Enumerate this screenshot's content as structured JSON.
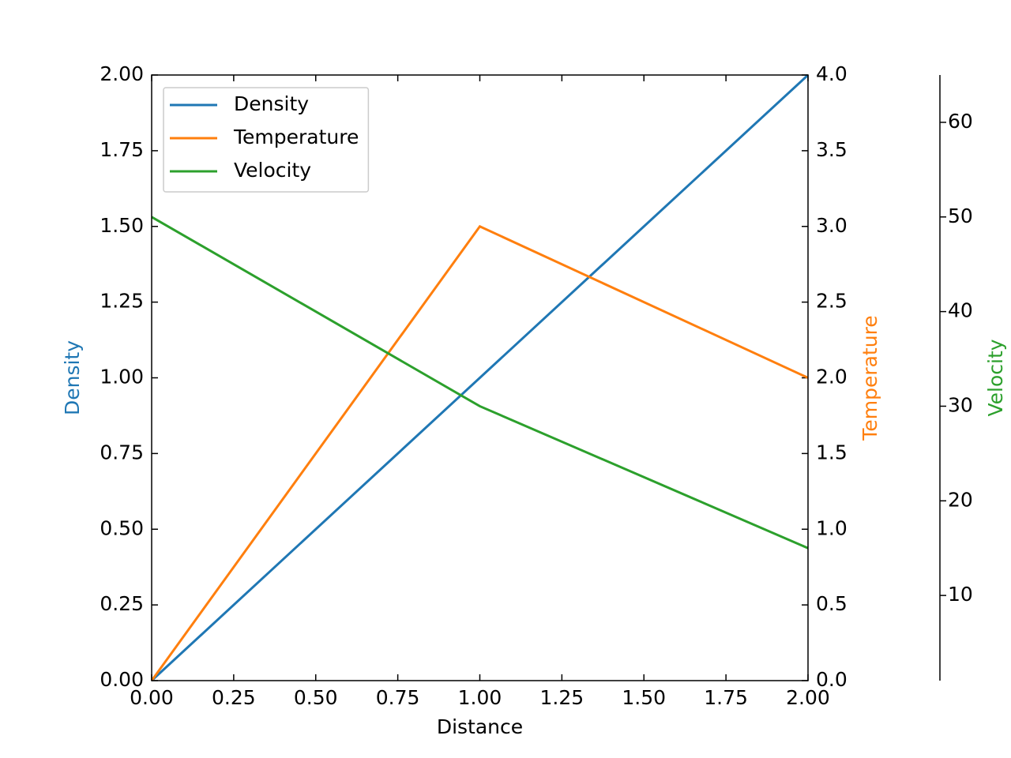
{
  "chart_data": {
    "type": "line",
    "x": [
      0,
      1,
      2
    ],
    "xlabel": "Distance",
    "ylabel": "Density",
    "y2label": "Temperature",
    "y3label": "Velocity",
    "series": [
      {
        "name": "Density",
        "color": "#1f77b4",
        "values": [
          0,
          1,
          2
        ],
        "axis": "y"
      },
      {
        "name": "Temperature",
        "color": "#ff7f0e",
        "values": [
          0,
          3,
          2
        ],
        "axis": "y2"
      },
      {
        "name": "Velocity",
        "color": "#2ca02c",
        "values": [
          50,
          30,
          15
        ],
        "axis": "y3"
      }
    ],
    "xlim": [
      0,
      2
    ],
    "xticks": [
      {
        "value": 0,
        "label": "0.00"
      },
      {
        "value": 0.25,
        "label": "0.25"
      },
      {
        "value": 0.5,
        "label": "0.50"
      },
      {
        "value": 0.75,
        "label": "0.75"
      },
      {
        "value": 1,
        "label": "1.00"
      },
      {
        "value": 1.25,
        "label": "1.25"
      },
      {
        "value": 1.5,
        "label": "1.50"
      },
      {
        "value": 1.75,
        "label": "1.75"
      },
      {
        "value": 2,
        "label": "2.00"
      }
    ],
    "ylim": [
      0,
      2
    ],
    "yticks": [
      {
        "value": 0,
        "label": "0.00"
      },
      {
        "value": 0.25,
        "label": "0.25"
      },
      {
        "value": 0.5,
        "label": "0.50"
      },
      {
        "value": 0.75,
        "label": "0.75"
      },
      {
        "value": 1,
        "label": "1.00"
      },
      {
        "value": 1.25,
        "label": "1.25"
      },
      {
        "value": 1.5,
        "label": "1.50"
      },
      {
        "value": 1.75,
        "label": "1.75"
      },
      {
        "value": 2,
        "label": "2.00"
      }
    ],
    "y2lim": [
      0,
      4
    ],
    "y2ticks": [
      {
        "value": 0,
        "label": "0.0"
      },
      {
        "value": 0.5,
        "label": "0.5"
      },
      {
        "value": 1,
        "label": "1.0"
      },
      {
        "value": 1.5,
        "label": "1.5"
      },
      {
        "value": 2,
        "label": "2.0"
      },
      {
        "value": 2.5,
        "label": "2.5"
      },
      {
        "value": 3,
        "label": "3.0"
      },
      {
        "value": 3.5,
        "label": "3.5"
      },
      {
        "value": 4,
        "label": "4.0"
      }
    ],
    "y3lim": [
      1,
      65
    ],
    "y3ticks": [
      10,
      20,
      30,
      40,
      50,
      60
    ],
    "legend": "upper left",
    "grid": false
  }
}
